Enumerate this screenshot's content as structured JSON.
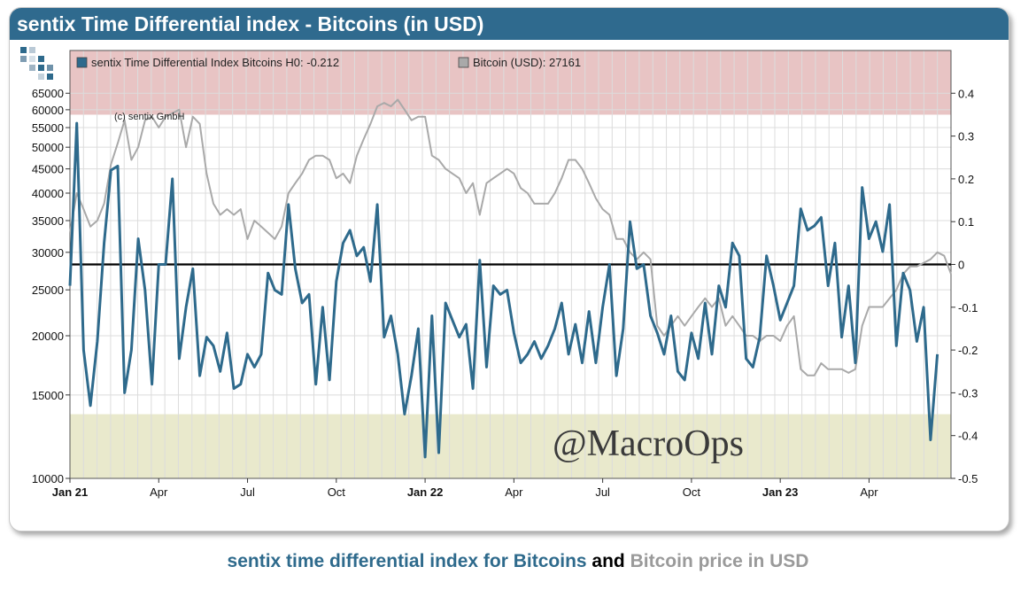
{
  "title": "sentix Time Differential index - Bitcoins (in USD)",
  "caption": {
    "part1": "sentix time differential index for Bitcoins",
    "part2": " and ",
    "part3": "Bitcoin price in USD"
  },
  "colors": {
    "title_bar": "#2f6a8e",
    "sentix_line": "#2e6a8c",
    "bitcoin_line": "#a9a9a9",
    "upper_band": "#e8c4c4",
    "lower_band": "#e9e9cc",
    "zero_line": "#000000"
  },
  "chart_data": {
    "type": "line",
    "title": "sentix Time Differential index - Bitcoins (in USD)",
    "copyright": "(c) sentix GmbH",
    "watermark": "@MacroOps",
    "x_range": [
      0,
      129
    ],
    "x_ticks": [
      {
        "label": "Jan 21",
        "x": 0,
        "bold": true
      },
      {
        "label": "Apr",
        "x": 13,
        "bold": false
      },
      {
        "label": "Jul",
        "x": 26,
        "bold": false
      },
      {
        "label": "Oct",
        "x": 39,
        "bold": false
      },
      {
        "label": "Jan 22",
        "x": 52,
        "bold": true
      },
      {
        "label": "Apr",
        "x": 65,
        "bold": false
      },
      {
        "label": "Jul",
        "x": 78,
        "bold": false
      },
      {
        "label": "Oct",
        "x": 91,
        "bold": false
      },
      {
        "label": "Jan 23",
        "x": 104,
        "bold": true
      },
      {
        "label": "Apr",
        "x": 117,
        "bold": false
      }
    ],
    "left_axis": {
      "scale": "log",
      "range": [
        10000,
        80000
      ],
      "ticks": [
        10000,
        15000,
        20000,
        25000,
        30000,
        35000,
        40000,
        45000,
        50000,
        55000,
        60000,
        65000
      ]
    },
    "right_axis": {
      "scale": "linear",
      "range": [
        -0.5,
        0.5
      ],
      "ticks": [
        "-0.5",
        "-0.4",
        "-0.3",
        "-0.2",
        "-0.1",
        "0",
        "0.1",
        "0.2",
        "0.3",
        "0.4"
      ]
    },
    "bands": [
      {
        "axis": "right",
        "from": 0.35,
        "to": 0.5,
        "color": "#e8c4c4"
      },
      {
        "axis": "right",
        "from": -0.5,
        "to": -0.35,
        "color": "#e9e9cc"
      }
    ],
    "series": [
      {
        "name": "sentix Time Differential Index Bitcoins H0",
        "legend": "sentix Time Differential Index Bitcoins H0: -0.212",
        "axis": "right",
        "color": "#2e6a8c",
        "values": [
          -0.05,
          0.33,
          -0.2,
          -0.33,
          -0.18,
          0.05,
          0.22,
          0.23,
          -0.3,
          -0.2,
          0.06,
          -0.06,
          -0.28,
          0.0,
          0.0,
          0.2,
          -0.22,
          -0.1,
          -0.01,
          -0.26,
          -0.17,
          -0.19,
          -0.25,
          -0.16,
          -0.29,
          -0.28,
          -0.21,
          -0.24,
          -0.21,
          -0.02,
          -0.06,
          -0.07,
          0.14,
          -0.01,
          -0.09,
          -0.07,
          -0.28,
          -0.1,
          -0.27,
          -0.04,
          0.05,
          0.08,
          0.02,
          0.04,
          -0.04,
          0.14,
          -0.17,
          -0.12,
          -0.21,
          -0.35,
          -0.26,
          -0.15,
          -0.45,
          -0.12,
          -0.44,
          -0.09,
          -0.13,
          -0.17,
          -0.14,
          -0.29,
          0.01,
          -0.24,
          -0.05,
          -0.07,
          -0.06,
          -0.16,
          -0.23,
          -0.21,
          -0.18,
          -0.22,
          -0.19,
          -0.15,
          -0.09,
          -0.21,
          -0.14,
          -0.23,
          -0.11,
          -0.23,
          -0.1,
          0.0,
          -0.26,
          -0.15,
          0.1,
          -0.01,
          0.0,
          -0.12,
          -0.16,
          -0.21,
          -0.12,
          -0.25,
          -0.27,
          -0.16,
          -0.22,
          -0.09,
          -0.21,
          -0.05,
          -0.1,
          0.05,
          0.02,
          -0.22,
          -0.24,
          -0.17,
          0.02,
          -0.05,
          -0.13,
          -0.09,
          -0.05,
          0.13,
          0.08,
          0.09,
          0.11,
          -0.05,
          0.05,
          -0.17,
          -0.05,
          -0.23,
          0.18,
          0.06,
          0.1,
          0.03,
          0.14,
          -0.19,
          -0.02,
          -0.06,
          -0.18,
          -0.1,
          -0.41,
          -0.21
        ]
      },
      {
        "name": "Bitcoin (USD)",
        "legend": "Bitcoin (USD): 27161",
        "axis": "left",
        "color": "#a9a9a9",
        "values": [
          33000,
          40000,
          37000,
          34000,
          35000,
          38000,
          46000,
          51000,
          57000,
          47000,
          50000,
          57000,
          58000,
          55000,
          58000,
          59000,
          60000,
          50000,
          58000,
          56000,
          44000,
          38000,
          36000,
          37000,
          36000,
          37000,
          32000,
          35000,
          34000,
          33000,
          32000,
          34000,
          40000,
          42000,
          44000,
          47000,
          48000,
          48000,
          47000,
          43000,
          44000,
          42000,
          48000,
          52000,
          56000,
          61000,
          62000,
          61000,
          63000,
          60000,
          57000,
          58000,
          58000,
          48000,
          47000,
          45000,
          44000,
          43000,
          40000,
          42000,
          36000,
          42000,
          43000,
          44000,
          45000,
          44000,
          41000,
          40000,
          38000,
          38000,
          38000,
          40000,
          43000,
          47000,
          47000,
          45000,
          42000,
          39000,
          37000,
          36000,
          32000,
          32000,
          30000,
          29000,
          30000,
          29000,
          21000,
          20000,
          21000,
          22000,
          21000,
          22000,
          23000,
          24000,
          23000,
          24000,
          21000,
          22000,
          21000,
          20000,
          20000,
          19500,
          20000,
          20000,
          19500,
          21000,
          22000,
          17000,
          16500,
          16500,
          17500,
          17000,
          17000,
          17000,
          16700,
          17000,
          21000,
          23000,
          23000,
          23000,
          24000,
          25000,
          27000,
          28000,
          28000,
          28500,
          29000,
          30000,
          29500,
          27000
        ]
      }
    ]
  }
}
